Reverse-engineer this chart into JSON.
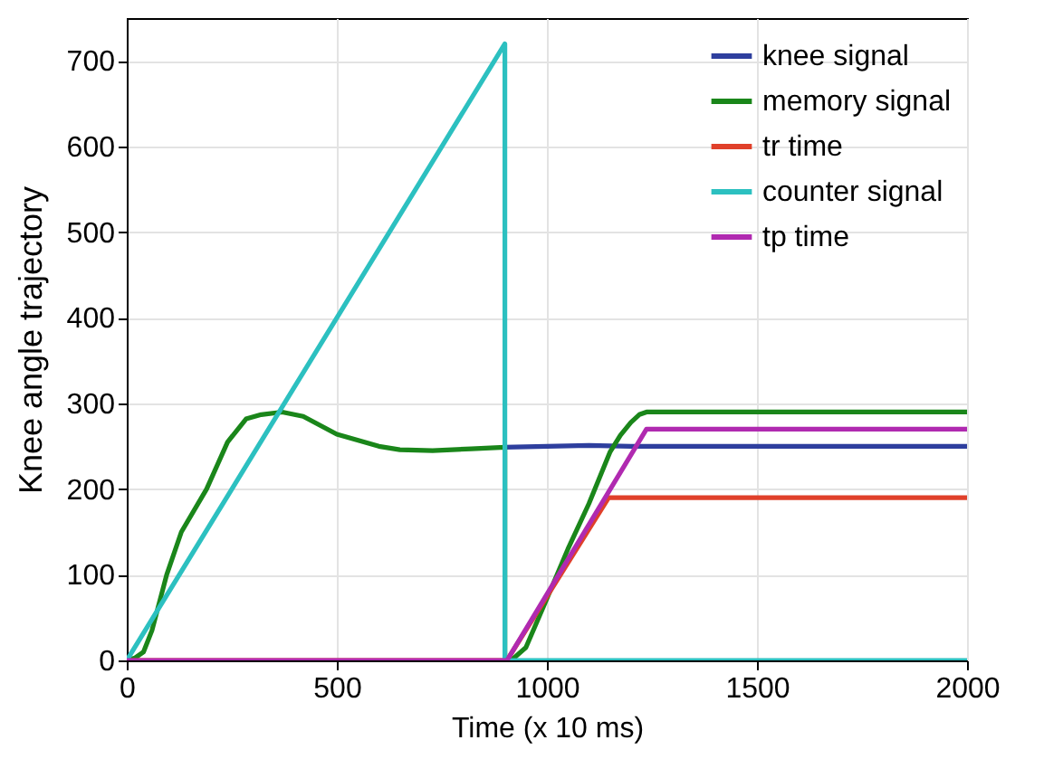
{
  "chart_data": {
    "type": "line",
    "xlabel": "Time (x 10 ms)",
    "ylabel": "Knee angle trajectory",
    "xlim": [
      0,
      2000
    ],
    "ylim": [
      0,
      750
    ],
    "xticks": [
      0,
      500,
      1000,
      1500,
      2000
    ],
    "yticks": [
      0,
      100,
      200,
      300,
      400,
      500,
      600,
      700
    ],
    "grid": true,
    "legend": "top right",
    "line_style": "solid",
    "series": [
      {
        "name": "knee signal",
        "color": "#2e3f9e",
        "x": [
          900,
          1000,
          1100,
          1200,
          2000
        ],
        "values": [
          249,
          250,
          251,
          250,
          250
        ]
      },
      {
        "name": "memory signal",
        "color": "#1a861a",
        "x": [
          0,
          20,
          40,
          60,
          95,
          130,
          190,
          240,
          284,
          320,
          370,
          420,
          500,
          600,
          650,
          728,
          820,
          900,
          900,
          915,
          950,
          1000,
          1050,
          1100,
          1150,
          1175,
          1200,
          1220,
          1237,
          2000
        ],
        "values": [
          0,
          3,
          10,
          35,
          100,
          150,
          200,
          255,
          282,
          287,
          290,
          285,
          264,
          250,
          246,
          245,
          247,
          249,
          0,
          0,
          15,
          72,
          130,
          183,
          243,
          263,
          278,
          287,
          290,
          290
        ]
      },
      {
        "name": "tr time",
        "color": "#e0402a",
        "x": [
          0,
          905,
          1147,
          2000
        ],
        "values": [
          0,
          0,
          190,
          190
        ]
      },
      {
        "name": "counter signal",
        "color": "#2cc0c0",
        "x": [
          0,
          900,
          900,
          2000
        ],
        "values": [
          0,
          720,
          0,
          0
        ]
      },
      {
        "name": "tp time",
        "color": "#b02ab0",
        "x": [
          0,
          905,
          1237,
          2000
        ],
        "values": [
          0,
          0,
          270,
          270
        ]
      }
    ]
  }
}
